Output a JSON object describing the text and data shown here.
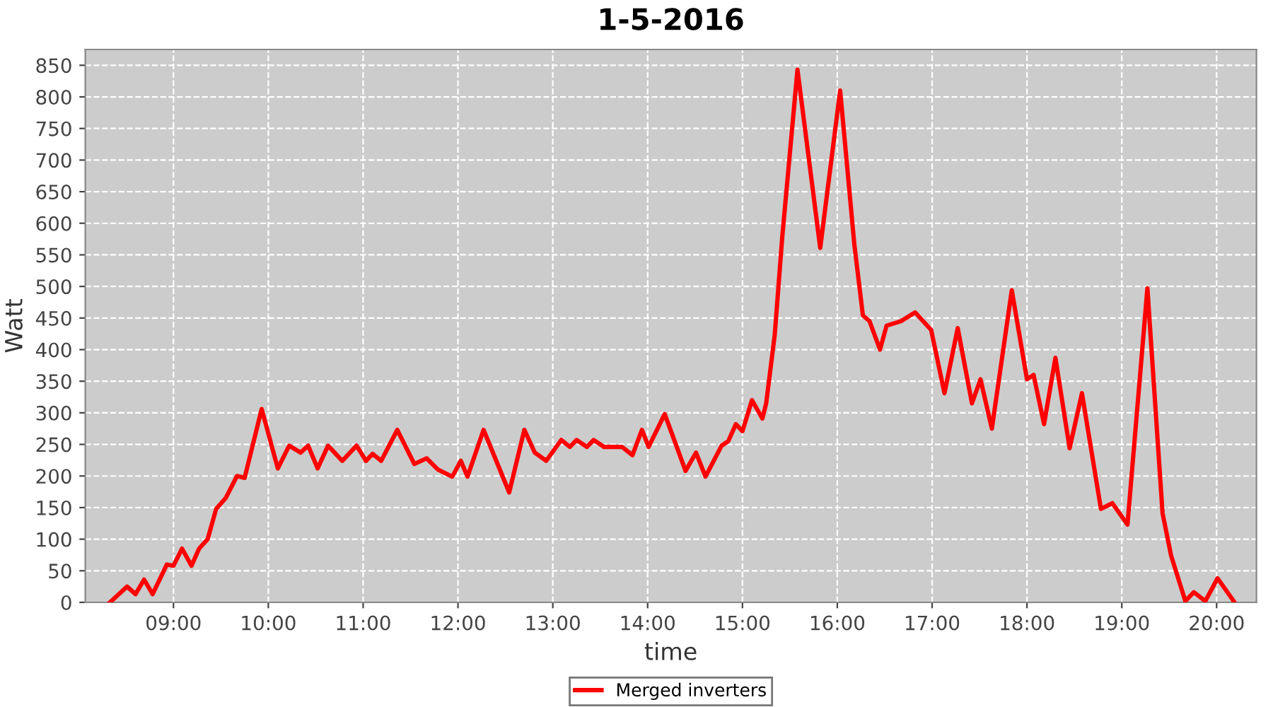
{
  "chart_data": {
    "type": "line",
    "title": "1-5-2016",
    "xlabel": "time",
    "ylabel": "Watt",
    "x": [
      8.33,
      8.51,
      8.6,
      8.69,
      8.78,
      8.93,
      9.0,
      9.09,
      9.19,
      9.27,
      9.36,
      9.45,
      9.55,
      9.67,
      9.75,
      9.93,
      10.1,
      10.22,
      10.34,
      10.42,
      10.52,
      10.63,
      10.78,
      10.93,
      11.03,
      11.1,
      11.19,
      11.36,
      11.54,
      11.67,
      11.79,
      11.94,
      12.03,
      12.1,
      12.27,
      12.54,
      12.7,
      12.81,
      12.93,
      13.09,
      13.18,
      13.25,
      13.36,
      13.43,
      13.54,
      13.73,
      13.84,
      13.94,
      14.01,
      14.18,
      14.4,
      14.51,
      14.61,
      14.78,
      14.85,
      14.93,
      15.0,
      15.1,
      15.21,
      15.25,
      15.34,
      15.42,
      15.58,
      15.82,
      16.03,
      16.18,
      16.27,
      16.34,
      16.45,
      16.52,
      16.67,
      16.82,
      16.99,
      17.13,
      17.27,
      17.42,
      17.51,
      17.63,
      17.84,
      18.0,
      18.07,
      18.18,
      18.3,
      18.45,
      18.58,
      18.78,
      18.9,
      19.06,
      19.27,
      19.43,
      19.52,
      19.67,
      19.76,
      19.88,
      20.01,
      20.18
    ],
    "series": [
      {
        "name": "Merged inverters",
        "color": "#ff0000",
        "values": [
          0,
          25,
          13,
          36,
          13,
          60,
          58,
          85,
          58,
          85,
          100,
          148,
          165,
          200,
          197,
          306,
          212,
          248,
          237,
          248,
          212,
          248,
          224,
          248,
          224,
          235,
          224,
          273,
          219,
          228,
          210,
          199,
          224,
          199,
          273,
          174,
          273,
          237,
          224,
          257,
          246,
          257,
          246,
          257,
          246,
          246,
          233,
          273,
          246,
          298,
          208,
          237,
          199,
          248,
          255,
          282,
          271,
          320,
          291,
          315,
          423,
          579,
          843,
          561,
          810,
          566,
          454,
          445,
          400,
          438,
          445,
          459,
          431,
          331,
          434,
          315,
          353,
          275,
          494,
          353,
          360,
          282,
          387,
          244,
          331,
          148,
          157,
          123,
          497,
          141,
          74,
          2,
          16,
          2,
          38,
          2
        ]
      }
    ],
    "xlim": [
      8.07,
      20.42
    ],
    "xticks": [
      {
        "value": 9,
        "label": "09:00"
      },
      {
        "value": 10,
        "label": "10:00"
      },
      {
        "value": 11,
        "label": "11:00"
      },
      {
        "value": 12,
        "label": "12:00"
      },
      {
        "value": 13,
        "label": "13:00"
      },
      {
        "value": 14,
        "label": "14:00"
      },
      {
        "value": 15,
        "label": "15:00"
      },
      {
        "value": 16,
        "label": "16:00"
      },
      {
        "value": 17,
        "label": "17:00"
      },
      {
        "value": 18,
        "label": "18:00"
      },
      {
        "value": 19,
        "label": "19:00"
      },
      {
        "value": 20,
        "label": "20:00"
      }
    ],
    "ylim": [
      0,
      875
    ],
    "yticks": [
      0,
      50,
      100,
      150,
      200,
      250,
      300,
      350,
      400,
      450,
      500,
      550,
      600,
      650,
      700,
      750,
      800,
      850
    ],
    "grid": true,
    "legend": "bottom",
    "marker": "none",
    "line_style": "solid"
  }
}
